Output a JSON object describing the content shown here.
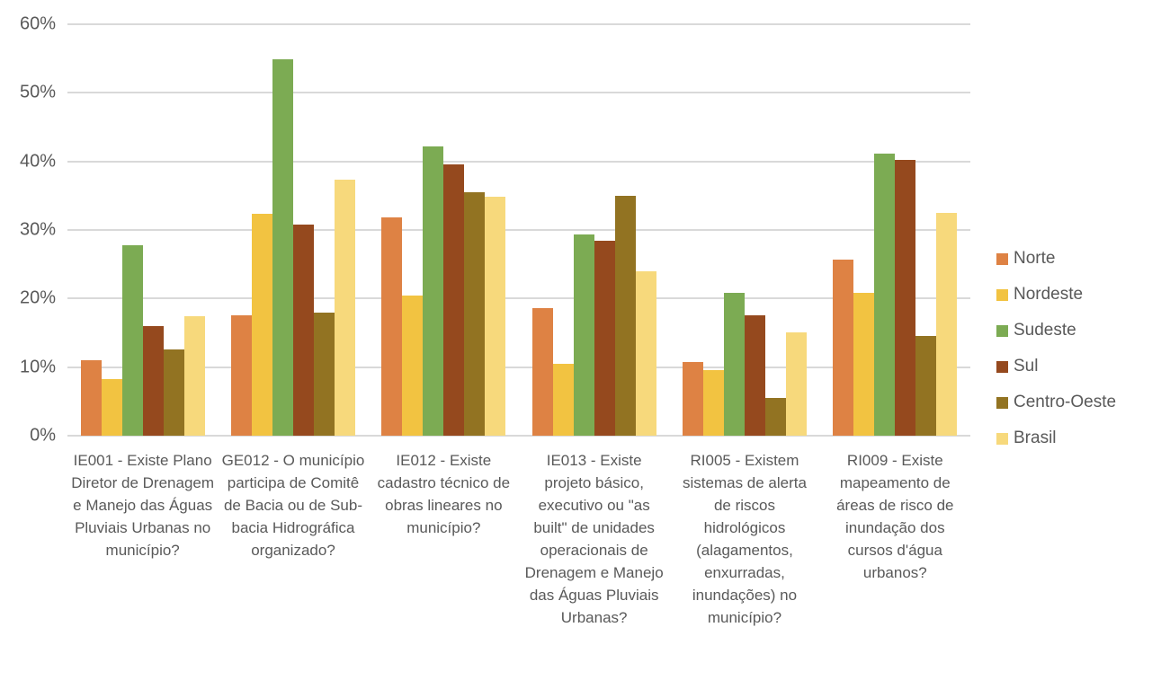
{
  "chart_data": {
    "type": "bar",
    "title": "",
    "xlabel": "",
    "ylabel": "",
    "y_axis": {
      "min": 0,
      "max": 60,
      "step": 10,
      "tick_labels": [
        "0%",
        "10%",
        "20%",
        "30%",
        "40%",
        "50%",
        "60%"
      ]
    },
    "grid": true,
    "legend_position": "right-middle",
    "categories": [
      "IE001 - Existe Plano Diretor de Drenagem e Manejo das Águas Pluviais Urbanas no município?",
      "GE012 - O município participa de Comitê de Bacia ou de Sub-bacia Hidrográfica organizado?",
      "IE012 - Existe cadastro técnico de obras lineares no município?",
      "IE013 - Existe projeto básico, executivo ou \"as built\" de unidades operacionais de Drenagem e Manejo das Águas Pluviais Urbanas?",
      "RI005 - Existem sistemas de alerta de riscos hidrológicos (alagamentos, enxurradas, inundações) no município?",
      "RI009 - Existe mapeamento de áreas de risco de inundação dos cursos d'água urbanos?"
    ],
    "series": [
      {
        "name": "Norte",
        "color": "#DE8244",
        "values": [
          11.0,
          17.5,
          31.8,
          18.6,
          10.7,
          25.7
        ]
      },
      {
        "name": "Nordeste",
        "color": "#F2C341",
        "values": [
          8.3,
          32.3,
          20.5,
          10.5,
          9.5,
          20.8
        ]
      },
      {
        "name": "Sudeste",
        "color": "#7CAB53",
        "values": [
          27.8,
          54.9,
          42.2,
          29.4,
          20.8,
          41.1
        ]
      },
      {
        "name": "Sul",
        "color": "#95491E",
        "values": [
          16.0,
          30.8,
          39.5,
          28.4,
          17.5,
          40.2
        ]
      },
      {
        "name": "Centro-Oeste",
        "color": "#927322",
        "values": [
          12.6,
          18.0,
          35.5,
          35.0,
          5.5,
          14.5
        ]
      },
      {
        "name": "Brasil",
        "color": "#F7D97C",
        "values": [
          17.4,
          37.4,
          34.8,
          24.0,
          15.1,
          32.5
        ]
      }
    ]
  },
  "colors": {
    "text": "#595959",
    "gridline": "#D9D9D9",
    "background": "#FFFFFF"
  }
}
